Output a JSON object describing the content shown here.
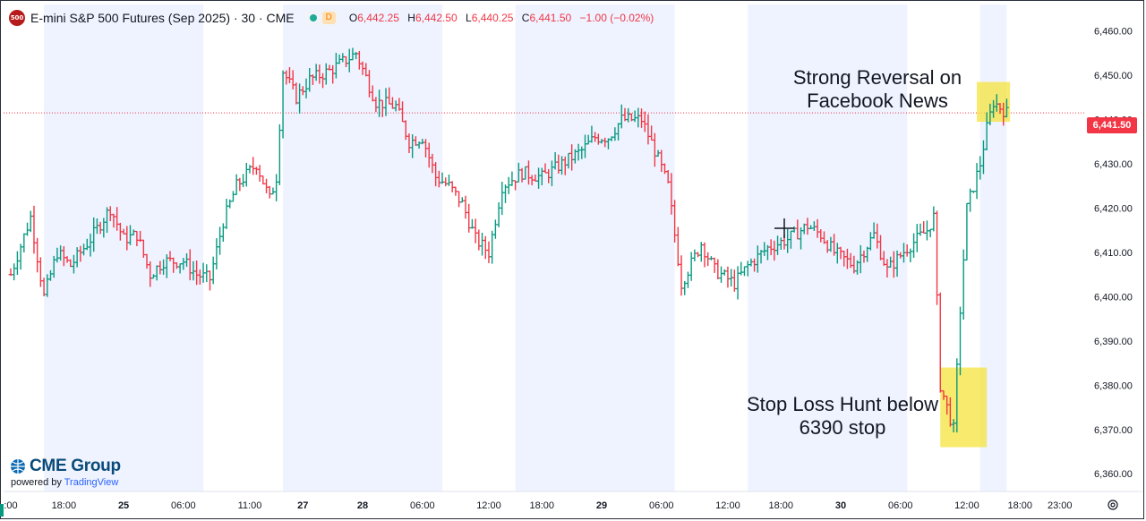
{
  "header": {
    "symbol_badge": "500",
    "title": "E-mini S&P 500 Futures (Sep 2025) · 30 · CME",
    "status_badge": "D",
    "ohlc": [
      {
        "label": "O",
        "value": "6,442.25"
      },
      {
        "label": "H",
        "value": "6,442.50"
      },
      {
        "label": "L",
        "value": "6,440.25"
      },
      {
        "label": "C",
        "value": "6,441.50"
      },
      {
        "label": "",
        "value": "−1.00 (−0.02%)"
      }
    ]
  },
  "branding": {
    "logo": "CME Group",
    "powered_prefix": "powered by ",
    "powered_brand": "TradingView"
  },
  "chart_data": {
    "type": "bar",
    "title": "",
    "ylim": [
      6356,
      6466
    ],
    "y_ticks": [
      6360,
      6370,
      6380,
      6390,
      6400,
      6410,
      6420,
      6430,
      6440,
      6450,
      6460
    ],
    "y_tick_labels": [
      "6,360.00",
      "6,370.00",
      "6,380.00",
      "6,390.00",
      "6,400.00",
      "6,410.00",
      "6,420.00",
      "6,430.00",
      "6,440.00",
      "6,450.00",
      "6,460.00"
    ],
    "x_range": [
      0,
      161
    ],
    "x_ticks": [
      {
        "label": ":00",
        "x": 0
      },
      {
        "label": "18:00",
        "x": 8
      },
      {
        "label": "25",
        "x": 17
      },
      {
        "label": "06:00",
        "x": 26
      },
      {
        "label": "11:00",
        "x": 36
      },
      {
        "label": "27",
        "x": 44
      },
      {
        "label": "28",
        "x": 53
      },
      {
        "label": "06:00",
        "x": 62
      },
      {
        "label": "12:00",
        "x": 72
      },
      {
        "label": "18:00",
        "x": 80
      },
      {
        "label": "29",
        "x": 89
      },
      {
        "label": "06:00",
        "x": 98
      },
      {
        "label": "12:00",
        "x": 108
      },
      {
        "label": "18:00",
        "x": 116
      },
      {
        "label": "30",
        "x": 125
      },
      {
        "label": "06:00",
        "x": 134
      },
      {
        "label": "12:00",
        "x": 144
      },
      {
        "label": "18:00",
        "x": 152
      },
      {
        "label": "23:00",
        "x": 158
      }
    ],
    "session_bands": [
      [
        5,
        29
      ],
      [
        41,
        65
      ],
      [
        76,
        100
      ],
      [
        111,
        135
      ],
      [
        146,
        150
      ]
    ],
    "last_price": 6441.5,
    "last_price_label": "6,441.50",
    "up_color": "#089981",
    "down_color": "#f23645",
    "annotations": [
      {
        "text": "Strong Reversal on Facebook News",
        "x": 147,
        "y": 6454
      },
      {
        "text": "Stop Loss Hunt below 6390 stop",
        "x": 120,
        "y": 6376
      }
    ],
    "highlight_boxes": [
      {
        "x0": 145.5,
        "x1": 150.5,
        "y0": 6439.5,
        "y1": 6448.5
      },
      {
        "x0": 140,
        "x1": 147,
        "y0": 6366,
        "y1": 6384
      }
    ],
    "anchors": [
      [
        0,
        6405
      ],
      [
        3,
        6418
      ],
      [
        5,
        6400
      ],
      [
        7,
        6410
      ],
      [
        9,
        6407
      ],
      [
        12,
        6413
      ],
      [
        15,
        6420
      ],
      [
        17,
        6413
      ],
      [
        19,
        6414
      ],
      [
        21,
        6405
      ],
      [
        23,
        6408
      ],
      [
        26,
        6408
      ],
      [
        28,
        6405
      ],
      [
        30,
        6404
      ],
      [
        32,
        6417
      ],
      [
        34,
        6425
      ],
      [
        37,
        6430
      ],
      [
        39,
        6422
      ],
      [
        40,
        6427
      ],
      [
        41,
        6451
      ],
      [
        43,
        6445
      ],
      [
        45,
        6449
      ],
      [
        48,
        6451
      ],
      [
        50,
        6453
      ],
      [
        52,
        6455
      ],
      [
        55,
        6444
      ],
      [
        58,
        6443
      ],
      [
        60,
        6435
      ],
      [
        62,
        6436
      ],
      [
        64,
        6427
      ],
      [
        66,
        6425
      ],
      [
        68,
        6421
      ],
      [
        70,
        6413
      ],
      [
        72,
        6410
      ],
      [
        74,
        6425
      ],
      [
        77,
        6428
      ],
      [
        80,
        6427
      ],
      [
        83,
        6430
      ],
      [
        86,
        6433
      ],
      [
        88,
        6436
      ],
      [
        90,
        6436
      ],
      [
        92,
        6440
      ],
      [
        95,
        6440
      ],
      [
        97,
        6433
      ],
      [
        99,
        6425
      ],
      [
        101,
        6403
      ],
      [
        104,
        6412
      ],
      [
        106,
        6406
      ],
      [
        109,
        6403
      ],
      [
        111,
        6407
      ],
      [
        114,
        6411
      ],
      [
        117,
        6413
      ],
      [
        120,
        6416
      ],
      [
        122,
        6414
      ],
      [
        124,
        6410
      ],
      [
        127,
        6407
      ],
      [
        130,
        6414
      ],
      [
        132,
        6406
      ],
      [
        135,
        6411
      ],
      [
        138,
        6415
      ],
      [
        139,
        6418
      ],
      [
        140,
        6380
      ],
      [
        142,
        6370
      ],
      [
        143,
        6397
      ],
      [
        144,
        6420
      ],
      [
        146,
        6430
      ],
      [
        147,
        6438
      ],
      [
        148,
        6444
      ],
      [
        150,
        6441.5
      ]
    ]
  }
}
